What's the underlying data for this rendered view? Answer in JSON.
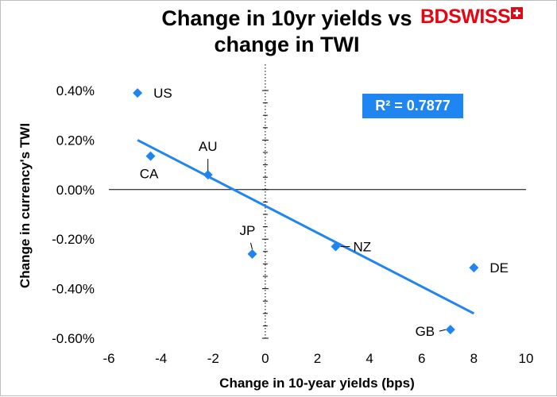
{
  "title_line1": "Change in 10yr yields vs",
  "title_line2": "change in TWI",
  "logo_text": "BDSWISS",
  "r2_label": "R² = 0.7877",
  "colors": {
    "series": "#1f85f1",
    "logo": "#e30613"
  },
  "chart_data": {
    "type": "scatter",
    "xlabel": "Change in 10-year yields (bps)",
    "ylabel": "Change in currency's  TWI",
    "xlim": [
      -6,
      10
    ],
    "ylim": [
      -0.6,
      0.4
    ],
    "x_ticks": [
      -6,
      -4,
      -2,
      0,
      2,
      4,
      6,
      8,
      10
    ],
    "y_ticks": [
      0.4,
      0.2,
      0.0,
      -0.2,
      -0.4,
      -0.6
    ],
    "y_tick_labels": [
      "0.40%",
      "0.20%",
      "0.00%",
      "-0.20%",
      "-0.40%",
      "-0.60%"
    ],
    "points": [
      {
        "label": "US",
        "x": -4.9,
        "y": 0.39
      },
      {
        "label": "CA",
        "x": -4.4,
        "y": 0.135
      },
      {
        "label": "AU",
        "x": -2.2,
        "y": 0.06
      },
      {
        "label": "JP",
        "x": -0.5,
        "y": -0.26
      },
      {
        "label": "NZ",
        "x": 2.7,
        "y": -0.23
      },
      {
        "label": "DE",
        "x": 8.0,
        "y": -0.315
      },
      {
        "label": "GB",
        "x": 7.1,
        "y": -0.565
      }
    ],
    "trendline": {
      "x": [
        -4.9,
        8.0
      ],
      "y": [
        0.2,
        -0.5
      ]
    },
    "legend": "none",
    "grid": false
  }
}
